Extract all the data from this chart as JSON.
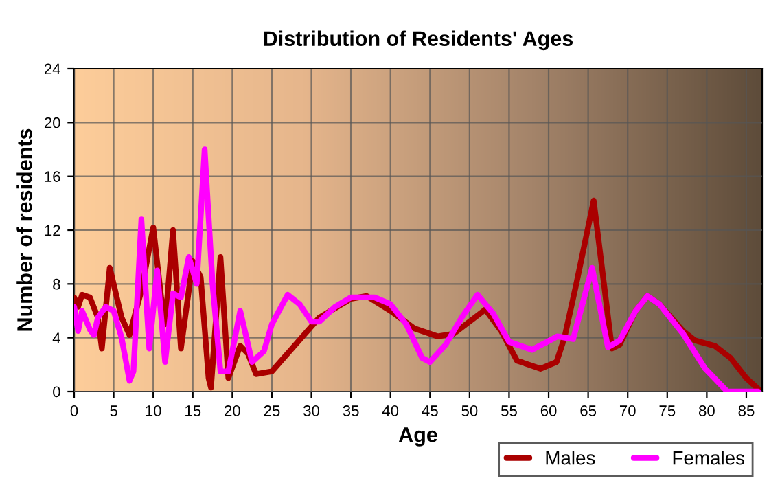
{
  "chart_data": {
    "type": "line",
    "title": "Distribution of Residents' Ages",
    "xlabel": "Age",
    "ylabel": "Number of residents",
    "xlim": [
      0,
      87
    ],
    "xticks": [
      0,
      5,
      10,
      15,
      20,
      25,
      30,
      35,
      40,
      45,
      50,
      55,
      60,
      65,
      70,
      75,
      80,
      85
    ],
    "ylim": [
      0,
      24
    ],
    "yticks": [
      0,
      4,
      8,
      12,
      16,
      20,
      24
    ],
    "grid": true,
    "legend": "bottom right",
    "marker": "none",
    "line_style": "solid",
    "series": [
      {
        "name": "Males",
        "color": "#aa0000",
        "x": [
          0,
          0.5,
          1,
          2,
          3,
          3.5,
          4.5,
          6,
          7,
          8.5,
          10,
          11,
          11.5,
          12.5,
          13.5,
          15,
          16,
          17,
          17.3,
          18.5,
          19.5,
          21,
          22,
          23,
          25,
          28,
          31,
          35,
          37,
          40,
          43,
          46,
          48,
          52,
          54,
          56,
          59,
          61,
          62,
          63.5,
          65.7,
          67,
          68,
          69,
          71,
          72.5,
          74,
          77,
          78.5,
          81,
          83,
          85,
          86.5
        ],
        "values": [
          7,
          6.3,
          7.2,
          7,
          5.5,
          3.2,
          9.2,
          5.5,
          4.2,
          7.5,
          12.2,
          7,
          5,
          12,
          3.2,
          9.7,
          8.5,
          1,
          0.3,
          10,
          1,
          3.4,
          2.8,
          1.3,
          1.5,
          3.5,
          5.5,
          6.9,
          7.1,
          6,
          4.7,
          4.1,
          4.3,
          6.1,
          4.5,
          2.3,
          1.7,
          2.2,
          4,
          8,
          14.2,
          8,
          3.2,
          3.5,
          6,
          7.1,
          6.5,
          4.5,
          3.8,
          3.4,
          2.5,
          1,
          0.2
        ]
      },
      {
        "name": "Females",
        "color": "#ff00ff",
        "x": [
          0,
          0.5,
          1,
          2,
          2.5,
          3,
          4,
          5,
          6,
          7,
          7.5,
          8.5,
          9.5,
          10.5,
          11.5,
          12.5,
          13.5,
          14.5,
          15.5,
          16.5,
          17.5,
          18.5,
          19.5,
          21,
          22.5,
          24,
          25,
          27,
          28.5,
          30,
          31,
          33,
          35,
          38,
          40,
          42,
          44,
          45,
          47,
          49,
          51,
          53,
          55,
          57.9,
          61.1,
          63.1,
          65.5,
          67.5,
          69,
          71,
          72.5,
          74,
          77,
          79.8,
          82.6,
          86.5
        ],
        "values": [
          6.3,
          4.5,
          6,
          4.6,
          4.2,
          5.5,
          6.3,
          6,
          4,
          0.8,
          1.5,
          12.8,
          3.2,
          9,
          2.2,
          7.3,
          7,
          10,
          8,
          18,
          8,
          1.5,
          1.5,
          6,
          2.2,
          3,
          5,
          7.2,
          6.5,
          5.2,
          5.2,
          6.3,
          7,
          7,
          6.5,
          5,
          2.5,
          2.2,
          3.5,
          5.5,
          7.2,
          5.8,
          3.7,
          3.1,
          4.1,
          3.9,
          9.2,
          3.3,
          3.8,
          6,
          7.1,
          6.5,
          4.3,
          1.7,
          0,
          0
        ]
      }
    ]
  }
}
